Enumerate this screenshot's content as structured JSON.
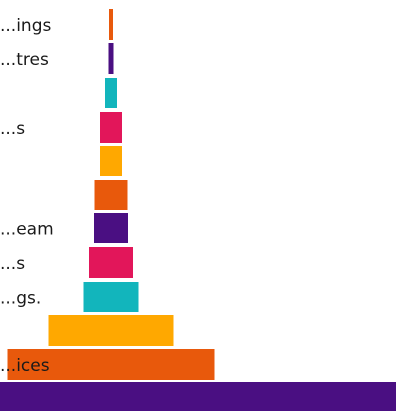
{
  "chart_data": {
    "type": "bar",
    "orientation": "horizontal-centered",
    "categories": [
      "...ings",
      "...tres",
      "",
      "...s",
      "",
      "",
      "...eam",
      "...s",
      "...gs.",
      "",
      "...ices"
    ],
    "values": [
      4,
      5,
      12,
      22,
      22,
      33,
      34,
      44,
      55,
      125,
      207
    ],
    "bar_colors": [
      "#e8590c",
      "#4a0f82",
      "#12b5bc",
      "#e2165a",
      "#ffa800",
      "#e8590c",
      "#4a0f82",
      "#e2165a",
      "#12b5bc",
      "#ffa800",
      "#e8590c"
    ],
    "band_color": "#4a0f82",
    "grid": false,
    "legend": "none"
  }
}
